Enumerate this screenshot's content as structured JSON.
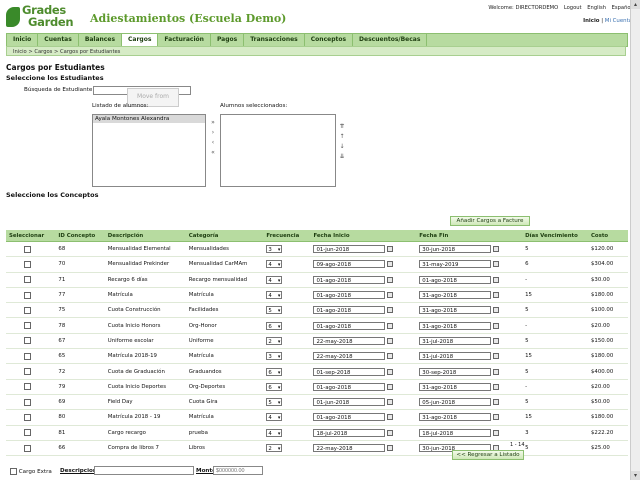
{
  "brand": {
    "logo_line1": "Grades",
    "logo_line2": "Garden",
    "app_title": "Adiestamientos (Escuela Demo)"
  },
  "top": {
    "welcome": "Welcome: DIRECTORDEMO",
    "logout": "Logout",
    "english": "English",
    "spanish": "Español",
    "inicio": "Inicio",
    "sep": "|",
    "mi_cuenta": "Mi Cuenta"
  },
  "nav": {
    "tabs": [
      "Inicio",
      "Cuentas",
      "Balances",
      "Cargos",
      "Facturación",
      "Pagos",
      "Transacciones",
      "Conceptos",
      "Descuentos/Becas"
    ],
    "active": 3
  },
  "breadcrumb": "Inicio > Cargos > Cargos por Estudiantes",
  "students": {
    "heading": "Cargos por Estudiantes",
    "subheading": "Seleccione los Estudiantes",
    "search_label": "Búsqueda de Estudiante",
    "search_value": "",
    "tooltip": "Move from",
    "list_label": "Listado de alumnos:",
    "list_items": [
      "Ayala Montones Alexandra"
    ],
    "selected_label": "Alumnos seleccionados:"
  },
  "concepts": {
    "heading": "Seleccione los Conceptos",
    "add_button": "Añadir Cargos a Facture",
    "headers": [
      "Seleccionar",
      "ID Concepto",
      "Descripción",
      "Categoría",
      "Frecuencia",
      "Fecha Inicio",
      "Fecha Fin",
      "Días Vencimiento",
      "Costo"
    ],
    "rows": [
      {
        "id": "68",
        "desc": "Mensualidad Elemental",
        "cat": "Mensualidades",
        "freq": "3",
        "start": "01-jun-2018",
        "end": "30-jun-2018",
        "days": "5",
        "cost": "$120.00"
      },
      {
        "id": "70",
        "desc": "Mensualidad Prekinder",
        "cat": "Mensualidad CarMAm",
        "freq": "4",
        "start": "09-ago-2018",
        "end": "31-may-2019",
        "days": "6",
        "cost": "$304.00"
      },
      {
        "id": "71",
        "desc": "Recargo 6 días",
        "cat": "Recargo mensualidad",
        "freq": "4",
        "start": "01-ago-2018",
        "end": "01-ago-2018",
        "days": "-",
        "cost": "$30.00"
      },
      {
        "id": "77",
        "desc": "Matrícula",
        "cat": "Matrícula",
        "freq": "4",
        "start": "01-ago-2018",
        "end": "31-ago-2018",
        "days": "15",
        "cost": "$180.00"
      },
      {
        "id": "75",
        "desc": "Cuota Construcción",
        "cat": "Facilidades",
        "freq": "5",
        "start": "01-ago-2018",
        "end": "31-ago-2018",
        "days": "5",
        "cost": "$100.00"
      },
      {
        "id": "78",
        "desc": "Cuota Inicio Honors",
        "cat": "Org-Honor",
        "freq": "6",
        "start": "01-ago-2018",
        "end": "31-ago-2018",
        "days": "-",
        "cost": "$20.00"
      },
      {
        "id": "67",
        "desc": "Uniforme escolar",
        "cat": "Uniforme",
        "freq": "2",
        "start": "22-may-2018",
        "end": "31-jul-2018",
        "days": "5",
        "cost": "$150.00"
      },
      {
        "id": "65",
        "desc": "Matrícula 2018-19",
        "cat": "Matrícula",
        "freq": "3",
        "start": "22-may-2018",
        "end": "31-jul-2018",
        "days": "15",
        "cost": "$180.00"
      },
      {
        "id": "72",
        "desc": "Cuota de Graduación",
        "cat": "Graduandos",
        "freq": "6",
        "start": "01-sep-2018",
        "end": "30-sep-2018",
        "days": "5",
        "cost": "$400.00"
      },
      {
        "id": "79",
        "desc": "Cuota Inicio Deportes",
        "cat": "Org-Deportes",
        "freq": "6",
        "start": "01-ago-2018",
        "end": "31-ago-2018",
        "days": "-",
        "cost": "$20.00"
      },
      {
        "id": "69",
        "desc": "Field Day",
        "cat": "Cuota Gira",
        "freq": "5",
        "start": "01-jun-2018",
        "end": "05-jun-2018",
        "days": "5",
        "cost": "$50.00"
      },
      {
        "id": "80",
        "desc": "Matrícula 2018 - 19",
        "cat": "Matrícula",
        "freq": "4",
        "start": "01-ago-2018",
        "end": "31-ago-2018",
        "days": "15",
        "cost": "$180.00"
      },
      {
        "id": "81",
        "desc": "Cargo recargo",
        "cat": "prueba",
        "freq": "4",
        "start": "18-jul-2018",
        "end": "18-jul-2018",
        "days": "3",
        "cost": "$222.20"
      },
      {
        "id": "66",
        "desc": "Compra de libros 7",
        "cat": "Libros",
        "freq": "2",
        "start": "22-may-2018",
        "end": "30-jun-2018",
        "days": "5",
        "cost": "$25.00"
      }
    ],
    "pager": "1 - 14",
    "back_button": "<< Regresar a Listado"
  },
  "extra": {
    "label": "Cargo Extra",
    "desc_label": "Descripcion",
    "amount_label": "Monto",
    "amount_placeholder": "$000000.00"
  }
}
